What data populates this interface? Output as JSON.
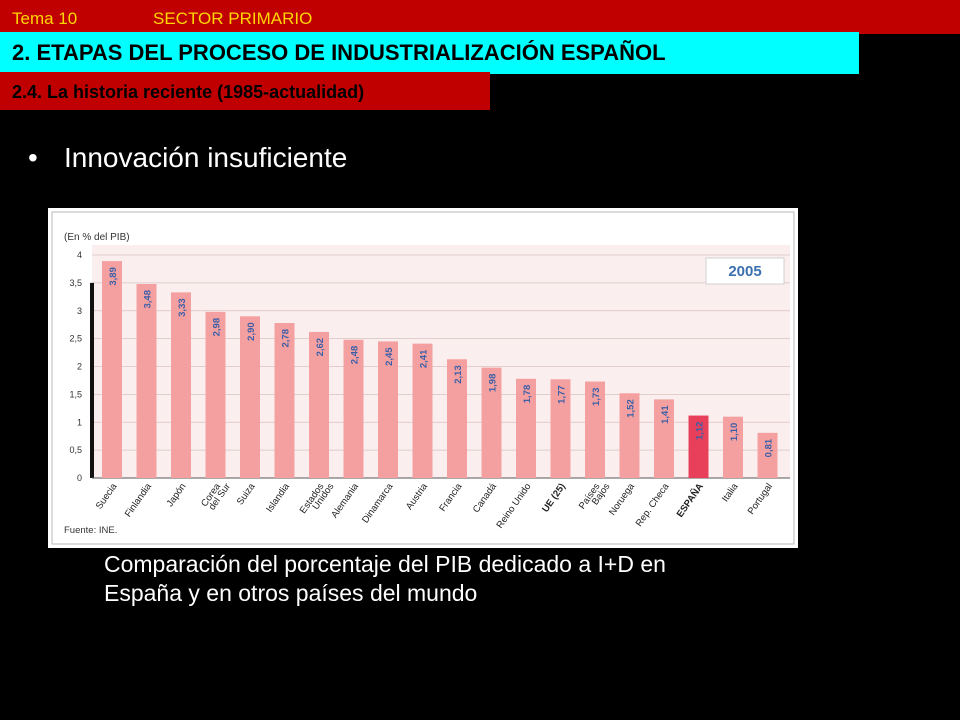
{
  "header": {
    "tema": "Tema 10",
    "sector": "SECTOR PRIMARIO",
    "title": "2. ETAPAS DEL PROCESO DE INDUSTRIALIZACIÓN ESPAÑOL",
    "subtitle": "2.4. La historia reciente (1985-actualidad)"
  },
  "main": {
    "bullet": "•",
    "bullet_text": "Innovación insuficiente",
    "caption_line1": "Comparación del porcentaje del PIB dedicado a I+D en",
    "caption_line2": "España y en otros países del mundo"
  },
  "colors": {
    "bar": "#f4a0a0",
    "bar_highlight": "#e8405a",
    "value_text": "#3a5fa8",
    "plot_bg": "#fbeeee",
    "year_color": "#3a6fb0"
  },
  "chart_data": {
    "type": "bar",
    "ylabel": "(En % del PIB)",
    "year": "2005",
    "source": "Fuente: INE.",
    "ylim": [
      0,
      4
    ],
    "yticks": [
      "0",
      "0,5",
      "1",
      "1,5",
      "2",
      "2,5",
      "3",
      "3,5",
      "4"
    ],
    "categories": [
      [
        "Suecia"
      ],
      [
        "Finlandia"
      ],
      [
        "Japón"
      ],
      [
        "Corea",
        "del Sur"
      ],
      [
        "Suiza"
      ],
      [
        "Islandia"
      ],
      [
        "Estados",
        "Unidos"
      ],
      [
        "Alemania"
      ],
      [
        "Dinamarca"
      ],
      [
        "Austria"
      ],
      [
        "Francia"
      ],
      [
        "Canadá"
      ],
      [
        "Reino Unido"
      ],
      [
        "UE (25)"
      ],
      [
        "Países",
        "Bajos"
      ],
      [
        "Noruega"
      ],
      [
        "Rep. Checa"
      ],
      [
        "ESPAÑA"
      ],
      [
        "Italia"
      ],
      [
        "Portugal"
      ]
    ],
    "values": [
      3.89,
      3.48,
      3.33,
      2.98,
      2.9,
      2.78,
      2.62,
      2.48,
      2.45,
      2.41,
      2.13,
      1.98,
      1.78,
      1.77,
      1.73,
      1.52,
      1.41,
      1.12,
      1.1,
      0.81
    ],
    "value_labels": [
      "3,89",
      "3,48",
      "3,33",
      "2,98",
      "2,90",
      "2,78",
      "2,62",
      "2,48",
      "2,45",
      "2,41",
      "2,13",
      "1,98",
      "1,78",
      "1,77",
      "1,73",
      "1,52",
      "1,41",
      "1,12",
      "1,10",
      "0,81"
    ],
    "bold_categories": [
      "UE (25)",
      "ESPAÑA"
    ],
    "highlight": "ESPAÑA"
  }
}
